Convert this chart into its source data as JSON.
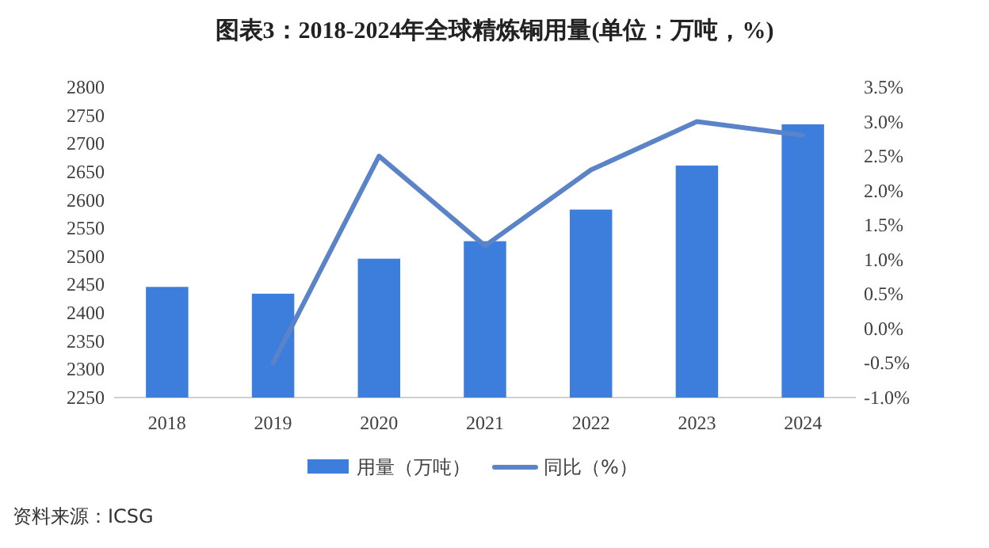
{
  "chart_data": {
    "type": "bar",
    "title": "图表3：2018-2024年全球精炼铜用量(单位：万吨，%)",
    "categories": [
      "2018",
      "2019",
      "2020",
      "2021",
      "2022",
      "2023",
      "2024"
    ],
    "series": [
      {
        "name": "用量（万吨）",
        "color": "#3d7ddb",
        "values": [
          2446,
          2434,
          2496,
          2527,
          2583,
          2661,
          2734
        ]
      },
      {
        "name": "同比（%）",
        "type": "line",
        "axis": "y2",
        "color": "#5a83c8",
        "values": [
          null,
          -0.5,
          2.5,
          1.2,
          2.3,
          3.0,
          2.8
        ]
      }
    ],
    "ylim": [
      2250,
      2800
    ],
    "yticks": [
      2250,
      2300,
      2350,
      2400,
      2450,
      2500,
      2550,
      2600,
      2650,
      2700,
      2750,
      2800
    ],
    "y2lim": [
      -1.0,
      3.5
    ],
    "y2ticks": [
      {
        "value": -1.0,
        "label": "-1.0%"
      },
      {
        "value": -0.5,
        "label": "-0.5%"
      },
      {
        "value": 0.0,
        "label": "0.0%"
      },
      {
        "value": 0.5,
        "label": "0.5%"
      },
      {
        "value": 1.0,
        "label": "1.0%"
      },
      {
        "value": 1.5,
        "label": "1.5%"
      },
      {
        "value": 2.0,
        "label": "2.0%"
      },
      {
        "value": 2.5,
        "label": "2.5%"
      },
      {
        "value": 3.0,
        "label": "3.0%"
      },
      {
        "value": 3.5,
        "label": "3.5%"
      }
    ],
    "legend": "bottom",
    "annotations": [
      "资料来源：ICSG"
    ]
  }
}
